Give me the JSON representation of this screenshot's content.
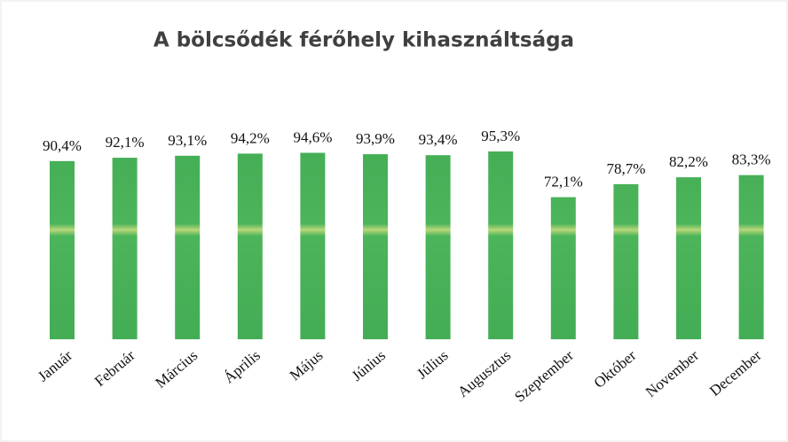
{
  "chart_data": {
    "type": "bar",
    "title": "A bölcsődék férőhely kihasználtsága",
    "categories": [
      "Január",
      "Február",
      "Március",
      "Április",
      "Május",
      "Június",
      "Július",
      "Augusztus",
      "Szeptember",
      "Október",
      "November",
      "December"
    ],
    "values": [
      90.4,
      92.1,
      93.1,
      94.2,
      94.6,
      93.9,
      93.4,
      95.3,
      72.1,
      78.7,
      82.2,
      83.3
    ],
    "value_labels": [
      "90,4%",
      "92,1%",
      "93,1%",
      "94,2%",
      "94,6%",
      "93,9%",
      "93,4%",
      "95,3%",
      "72,1%",
      "78,7%",
      "82,2%",
      "83,3%"
    ],
    "color": "#43ad55"
  }
}
